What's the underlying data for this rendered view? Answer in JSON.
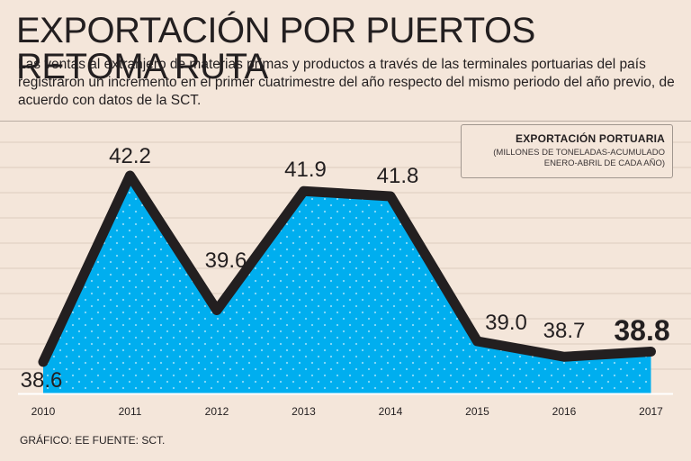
{
  "headline": "EXPORTACIÓN POR PUERTOS RETOMA RUTA",
  "dek": "Las ventas al extranjero de materias primas y productos a través de las terminales portuarias del país registraron un incremento en el primer cuatrimestre del año respecto del mismo periodo del año previo, de acuerdo con datos de la SCT.",
  "legend": {
    "title": "EXPORTACIÓN PORTUARIA",
    "line1": "(MILLONES DE TONELADAS-ACUMULADO",
    "line2": "ENERO-ABRIL DE CADA AÑO)"
  },
  "footer": "GRÁFICO: EE  FUENTE: SCT.",
  "colors": {
    "area": "#00aeef",
    "line": "#231f20",
    "background": "#f4e6da",
    "gridline": "#ddccbe"
  },
  "chart_data": {
    "type": "area",
    "title": "EXPORTACIÓN PORTUARIA",
    "ylabel": "Millones de toneladas (acumulado enero-abril)",
    "categories": [
      "2010",
      "2011",
      "2012",
      "2013",
      "2014",
      "2015",
      "2016",
      "2017"
    ],
    "values": [
      38.6,
      42.2,
      39.6,
      41.9,
      41.8,
      39.0,
      38.7,
      38.8
    ],
    "data_labels": [
      "38.6",
      "42.2",
      "39.6",
      "41.9",
      "41.8",
      "39.0",
      "38.7",
      "38.8"
    ],
    "ylim": [
      38.3,
      42.9
    ],
    "grid": true
  }
}
